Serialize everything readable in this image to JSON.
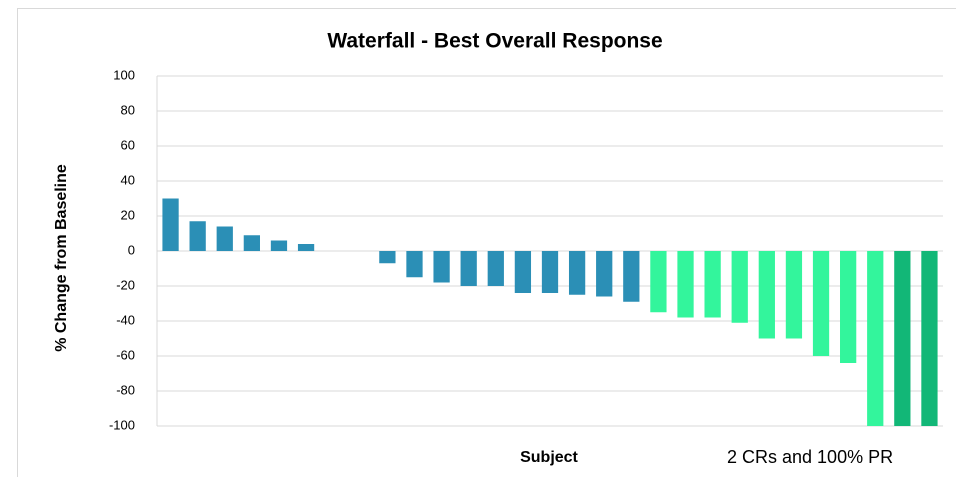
{
  "chart_data": {
    "type": "bar",
    "title": "Waterfall - Best Overall Response",
    "y_label": "% Change from Baseline",
    "x_label": "Subject",
    "annotation": "2 CRs and 100% PR",
    "values": [
      30,
      17,
      14,
      9,
      6,
      4,
      0,
      0,
      -7,
      -15,
      -18,
      -20,
      -20,
      -24,
      -24,
      -25,
      -26,
      -29,
      -35,
      -38,
      -38,
      -41,
      -50,
      -50,
      -60,
      -64,
      -100,
      -100,
      -100
    ],
    "colors": [
      "#2b8fb6",
      "#2b8fb6",
      "#2b8fb6",
      "#2b8fb6",
      "#2b8fb6",
      "#2b8fb6",
      "#2b8fb6",
      "#2b8fb6",
      "#2b8fb6",
      "#2b8fb6",
      "#2b8fb6",
      "#2b8fb6",
      "#2b8fb6",
      "#2b8fb6",
      "#2b8fb6",
      "#2b8fb6",
      "#2b8fb6",
      "#2b8fb6",
      "#33f59c",
      "#33f59c",
      "#33f59c",
      "#33f59c",
      "#33f59c",
      "#33f59c",
      "#33f59c",
      "#33f59c",
      "#33f59c",
      "#12b777",
      "#12b777"
    ],
    "ylim": [
      -100,
      100
    ],
    "yticks": [
      -100,
      -80,
      -60,
      -40,
      -20,
      0,
      20,
      40,
      60,
      80,
      100
    ],
    "grid": true
  }
}
